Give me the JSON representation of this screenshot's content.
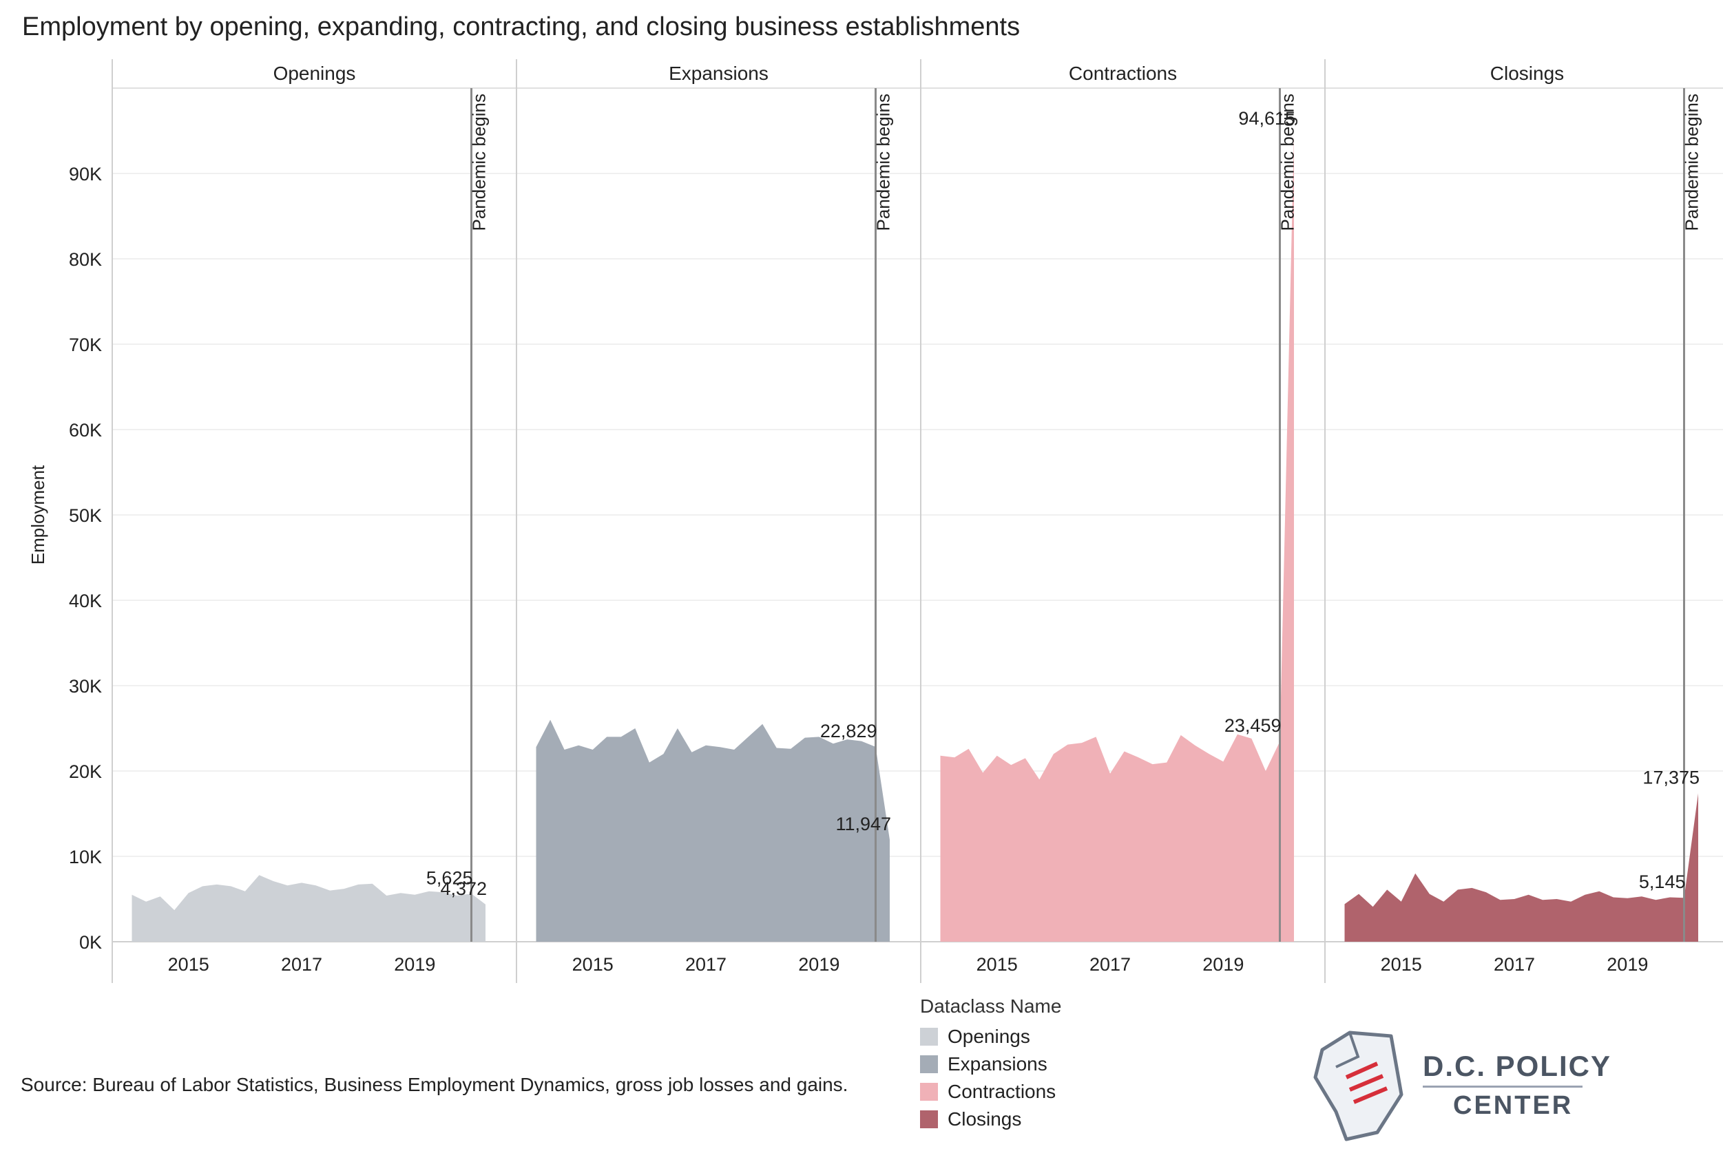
{
  "title": "Employment by opening, expanding, contracting, and closing business establishments",
  "source": "Source: Bureau of Labor Statistics, Business Employment Dynamics, gross job losses and gains.",
  "legend": {
    "title": "Dataclass Name",
    "items": [
      {
        "label": "Openings",
        "color": "#cdd1d6"
      },
      {
        "label": "Expansions",
        "color": "#a4acb6"
      },
      {
        "label": "Contractions",
        "color": "#f0b1b7"
      },
      {
        "label": "Closings",
        "color": "#b0636c"
      }
    ]
  },
  "logo": {
    "line1": "D.C. POLICY",
    "line2": "CENTER"
  },
  "chart_data": {
    "type": "area",
    "ylabel": "Employment",
    "xlabel": "",
    "ylim": [
      0,
      100000
    ],
    "yticks": [
      0,
      10000,
      20000,
      30000,
      40000,
      50000,
      60000,
      70000,
      80000,
      90000
    ],
    "ytick_labels": [
      "0K",
      "10K",
      "20K",
      "30K",
      "40K",
      "50K",
      "60K",
      "70K",
      "80K",
      "90K"
    ],
    "xlim": [
      2013.75,
      2020.7
    ],
    "xticks": [
      2015,
      2017,
      2019
    ],
    "xtick_labels": [
      "2015",
      "2017",
      "2019"
    ],
    "grid": true,
    "reference_line": {
      "x": 2020.0,
      "label": "Pandemic begins"
    },
    "panels": [
      {
        "name": "Openings",
        "color": "#cdd1d6",
        "x": [
          2014.0,
          2014.25,
          2014.5,
          2014.75,
          2015.0,
          2015.25,
          2015.5,
          2015.75,
          2016.0,
          2016.25,
          2016.5,
          2016.75,
          2017.0,
          2017.25,
          2017.5,
          2017.75,
          2018.0,
          2018.25,
          2018.5,
          2018.75,
          2019.0,
          2019.25,
          2019.5,
          2019.75,
          2020.0,
          2020.25
        ],
        "values": [
          5500,
          4700,
          5300,
          3700,
          5700,
          6500,
          6700,
          6500,
          5900,
          7800,
          7100,
          6600,
          6900,
          6600,
          6000,
          6200,
          6700,
          6800,
          5400,
          5700,
          5500,
          5900,
          5800,
          5400,
          5625,
          4372
        ],
        "labels": [
          {
            "text": "5,625",
            "x": 2020.0,
            "y": 5625
          },
          {
            "text": "4,372",
            "x": 2020.25,
            "y": 4372
          }
        ]
      },
      {
        "name": "Expansions",
        "color": "#a4acb6",
        "x": [
          2014.0,
          2014.25,
          2014.5,
          2014.75,
          2015.0,
          2015.25,
          2015.5,
          2015.75,
          2016.0,
          2016.25,
          2016.5,
          2016.75,
          2017.0,
          2017.25,
          2017.5,
          2017.75,
          2018.0,
          2018.25,
          2018.5,
          2018.75,
          2019.0,
          2019.25,
          2019.5,
          2019.75,
          2020.0,
          2020.25
        ],
        "values": [
          22800,
          26000,
          22500,
          23000,
          22500,
          24000,
          24000,
          25000,
          21000,
          22000,
          25000,
          22200,
          23000,
          22800,
          22500,
          24000,
          25500,
          22700,
          22600,
          23900,
          24000,
          23200,
          23700,
          23500,
          22829,
          11947
        ],
        "labels": [
          {
            "text": "22,829",
            "x": 2020.0,
            "y": 22829
          },
          {
            "text": "11,947",
            "x": 2020.25,
            "y": 11947
          }
        ]
      },
      {
        "name": "Contractions",
        "color": "#f0b1b7",
        "x": [
          2014.0,
          2014.25,
          2014.5,
          2014.75,
          2015.0,
          2015.25,
          2015.5,
          2015.75,
          2016.0,
          2016.25,
          2016.5,
          2016.75,
          2017.0,
          2017.25,
          2017.5,
          2017.75,
          2018.0,
          2018.25,
          2018.5,
          2018.75,
          2019.0,
          2019.25,
          2019.5,
          2019.75,
          2020.0,
          2020.25
        ],
        "values": [
          21800,
          21600,
          22600,
          19800,
          21800,
          20700,
          21500,
          19000,
          22000,
          23100,
          23300,
          24000,
          19700,
          22300,
          21600,
          20800,
          21000,
          24200,
          23000,
          22000,
          21100,
          24300,
          23800,
          20000,
          23459,
          94615
        ],
        "labels": [
          {
            "text": "94,615",
            "x": 2020.25,
            "y": 94615
          },
          {
            "text": "23,459",
            "x": 2020.0,
            "y": 23459
          }
        ]
      },
      {
        "name": "Closings",
        "color": "#b0636c",
        "x": [
          2014.0,
          2014.25,
          2014.5,
          2014.75,
          2015.0,
          2015.25,
          2015.5,
          2015.75,
          2016.0,
          2016.25,
          2016.5,
          2016.75,
          2017.0,
          2017.25,
          2017.5,
          2017.75,
          2018.0,
          2018.25,
          2018.5,
          2018.75,
          2019.0,
          2019.25,
          2019.5,
          2019.75,
          2020.0,
          2020.25
        ],
        "values": [
          4400,
          5600,
          4100,
          6100,
          4700,
          8000,
          5600,
          4700,
          6100,
          6300,
          5800,
          4900,
          5000,
          5500,
          4900,
          5000,
          4700,
          5500,
          5900,
          5200,
          5100,
          5300,
          4900,
          5200,
          5145,
          17375
        ],
        "labels": [
          {
            "text": "17,375",
            "x": 2020.25,
            "y": 17375
          },
          {
            "text": "5,145",
            "x": 2020.0,
            "y": 5145
          }
        ]
      }
    ]
  }
}
